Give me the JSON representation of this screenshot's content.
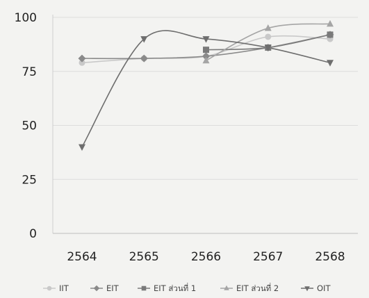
{
  "chart_data": {
    "type": "line",
    "title": "",
    "xlabel": "",
    "ylabel": "",
    "categories": [
      "2564",
      "2565",
      "2566",
      "2567",
      "2568"
    ],
    "ylim": [
      0,
      100
    ],
    "yticks": [
      0,
      25,
      50,
      75,
      100
    ],
    "grid": true,
    "legend_position": "bottom",
    "series": [
      {
        "name": "IIT",
        "color": "#c9c9c9",
        "marker": "circle",
        "values": [
          79,
          81,
          82,
          91,
          90
        ]
      },
      {
        "name": "EIT",
        "color": "#8a8a8a",
        "marker": "diamond",
        "values": [
          81,
          81,
          82,
          86,
          92
        ]
      },
      {
        "name": "EIT ส่วนที่ 1",
        "color": "#7a7a7a",
        "marker": "square",
        "values": [
          null,
          null,
          85,
          86,
          92
        ]
      },
      {
        "name": "EIT ส่วนที่ 2",
        "color": "#a5a5a5",
        "marker": "triangle-up",
        "values": [
          null,
          null,
          80,
          95,
          97
        ]
      },
      {
        "name": "OIT",
        "color": "#6e6e6e",
        "marker": "triangle-down",
        "values": [
          40,
          90,
          90,
          86,
          79
        ]
      }
    ]
  }
}
